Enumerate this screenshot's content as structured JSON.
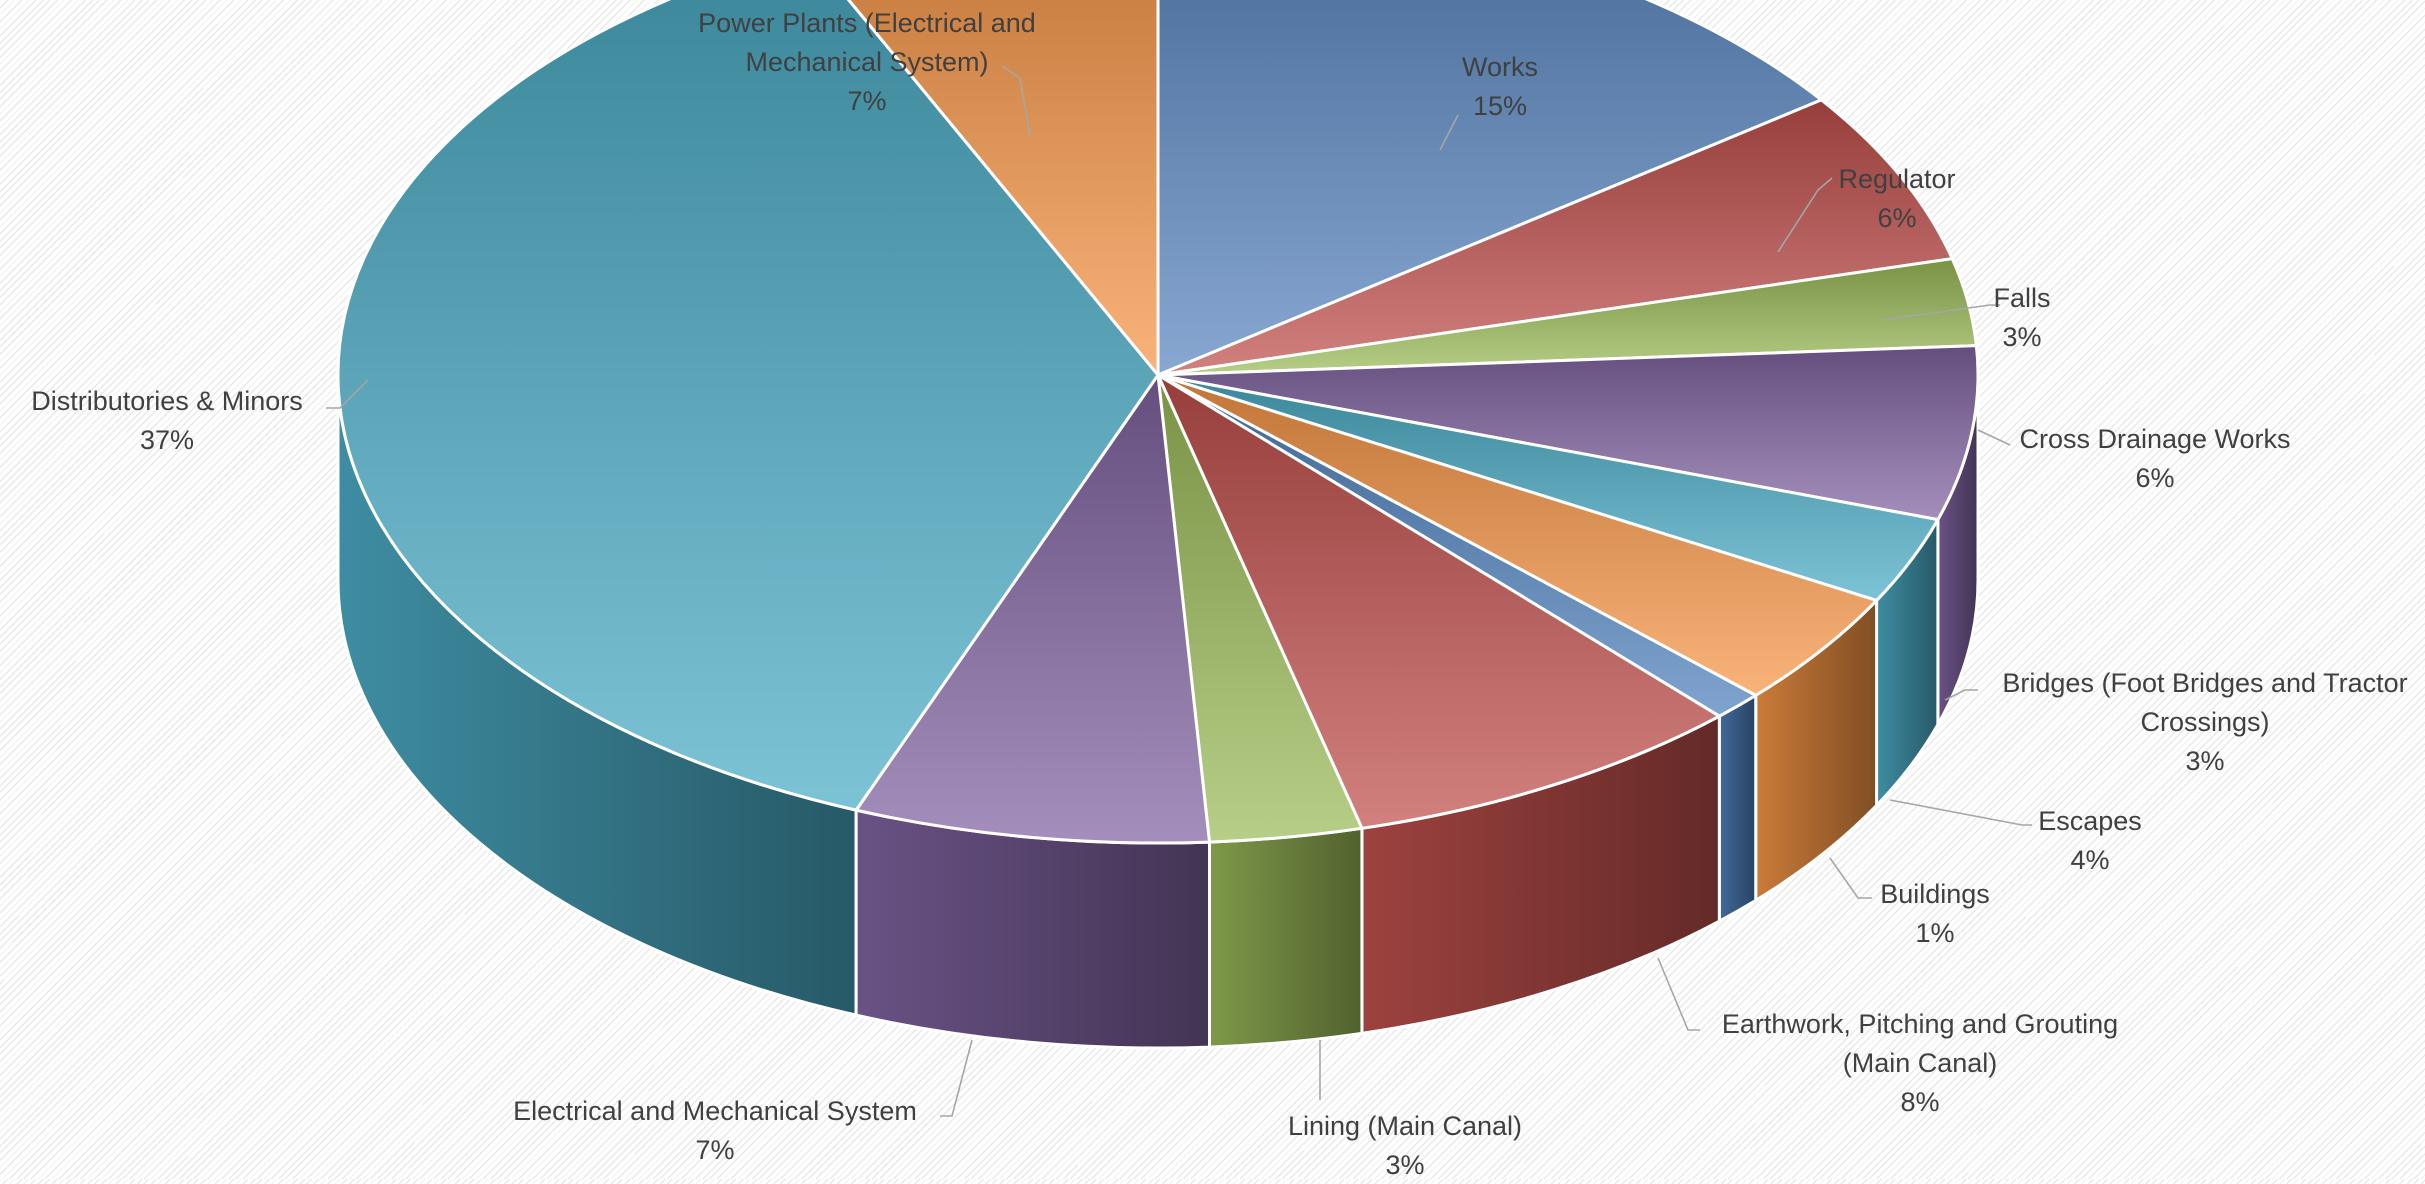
{
  "chart_data": {
    "type": "pie",
    "style": "3d-exploded-none",
    "title": "",
    "slices": [
      {
        "name": "Works",
        "label_lines": [
          "Works"
        ],
        "value": 15,
        "percent_label": "15%",
        "color": "#5a86c0"
      },
      {
        "name": "Regulator",
        "label_lines": [
          "Regulator"
        ],
        "value": 6,
        "percent_label": "6%",
        "color": "#c0504d"
      },
      {
        "name": "Falls",
        "label_lines": [
          "Falls"
        ],
        "value": 3,
        "percent_label": "3%",
        "color": "#9bbb59"
      },
      {
        "name": "Cross Drainage Works",
        "label_lines": [
          "Cross Drainage Works"
        ],
        "value": 6,
        "percent_label": "6%",
        "color": "#8064a2"
      },
      {
        "name": "Bridges (Foot Bridges and Tractor Crossings)",
        "label_lines": [
          "Bridges (Foot Bridges and Tractor",
          "Crossings)"
        ],
        "value": 3,
        "percent_label": "3%",
        "color": "#4bacc6"
      },
      {
        "name": "Escapes",
        "label_lines": [
          "Escapes"
        ],
        "value": 4,
        "percent_label": "4%",
        "color": "#f79646"
      },
      {
        "name": "Buildings",
        "label_lines": [
          "Buildings"
        ],
        "value": 1,
        "percent_label": "1%",
        "color": "#4f81bd"
      },
      {
        "name": "Earthwork, Pitching and Grouting (Main Canal)",
        "label_lines": [
          "Earthwork, Pitching and Grouting",
          "(Main Canal)"
        ],
        "value": 8,
        "percent_label": "8%",
        "color": "#c0504d"
      },
      {
        "name": "Lining (Main Canal)",
        "label_lines": [
          "Lining (Main Canal)"
        ],
        "value": 3,
        "percent_label": "3%",
        "color": "#9bbb59"
      },
      {
        "name": "Electrical and Mechanical System",
        "label_lines": [
          "Electrical and Mechanical System"
        ],
        "value": 7,
        "percent_label": "7%",
        "color": "#8064a2"
      },
      {
        "name": "Distributories & Minors",
        "label_lines": [
          "Distributories & Minors"
        ],
        "value": 37,
        "percent_label": "37%",
        "color": "#4bacc6"
      },
      {
        "name": "Power Plants (Electrical and Mechanical System)",
        "label_lines": [
          "Power Plants (Electrical and",
          "Mechanical System)"
        ],
        "value": 7,
        "percent_label": "7%",
        "color": "#f79646"
      }
    ],
    "legend": "none",
    "data_labels": "outside-with-leader-lines"
  }
}
